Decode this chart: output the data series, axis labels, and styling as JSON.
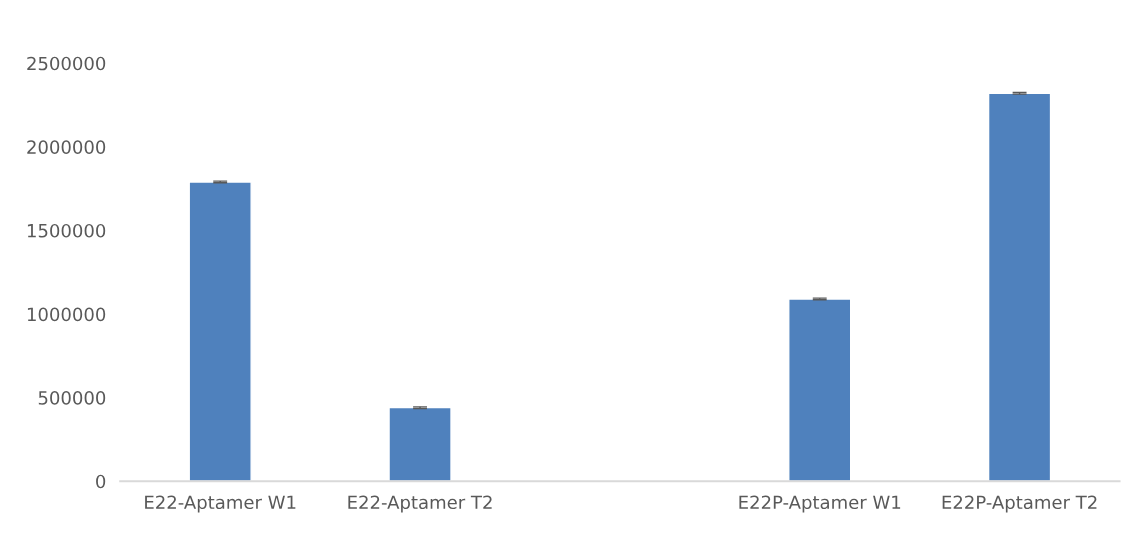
{
  "chart_data": {
    "type": "bar",
    "categories": [
      "E22-Aptamer W1",
      "E22-Aptamer T2",
      null,
      "E22P-Aptamer W1",
      "E22P-Aptamer T2"
    ],
    "values": [
      1790000,
      440000,
      null,
      1090000,
      2320000
    ],
    "errors": [
      5000,
      5000,
      null,
      5000,
      5000
    ],
    "color": "#4f81bd",
    "ylim": [
      0,
      2500000
    ],
    "yticks": [
      0,
      500000,
      1000000,
      1500000,
      2000000,
      2500000
    ],
    "grid": false
  }
}
